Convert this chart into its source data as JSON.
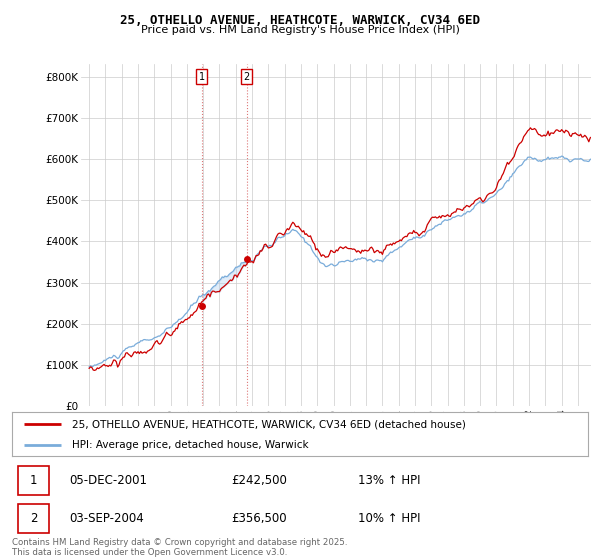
{
  "title_line1": "25, OTHELLO AVENUE, HEATHCOTE, WARWICK, CV34 6ED",
  "title_line2": "Price paid vs. HM Land Registry's House Price Index (HPI)",
  "ylabel_ticks": [
    "£0",
    "£100K",
    "£200K",
    "£300K",
    "£400K",
    "£500K",
    "£600K",
    "£700K",
    "£800K"
  ],
  "ytick_values": [
    0,
    100000,
    200000,
    300000,
    400000,
    500000,
    600000,
    700000,
    800000
  ],
  "ylim": [
    0,
    830000
  ],
  "xlim_start": 1994.5,
  "xlim_end": 2025.8,
  "purchase1_date": "05-DEC-2001",
  "purchase1_price": 242500,
  "purchase1_year": 2001.917,
  "purchase1_label": "1",
  "purchase1_hpi": "13% ↑ HPI",
  "purchase2_date": "03-SEP-2004",
  "purchase2_price": 356500,
  "purchase2_year": 2004.667,
  "purchase2_label": "2",
  "purchase2_hpi": "10% ↑ HPI",
  "line_color_property": "#cc0000",
  "line_color_hpi": "#7aacda",
  "fill_color": "#ddeeff",
  "legend_line1": "25, OTHELLO AVENUE, HEATHCOTE, WARWICK, CV34 6ED (detached house)",
  "legend_line2": "HPI: Average price, detached house, Warwick",
  "footnote": "Contains HM Land Registry data © Crown copyright and database right 2025.\nThis data is licensed under the Open Government Licence v3.0.",
  "background_color": "#ffffff",
  "grid_color": "#cccccc",
  "marker_color": "#cc0000",
  "vline_color": "#e8a0a0"
}
